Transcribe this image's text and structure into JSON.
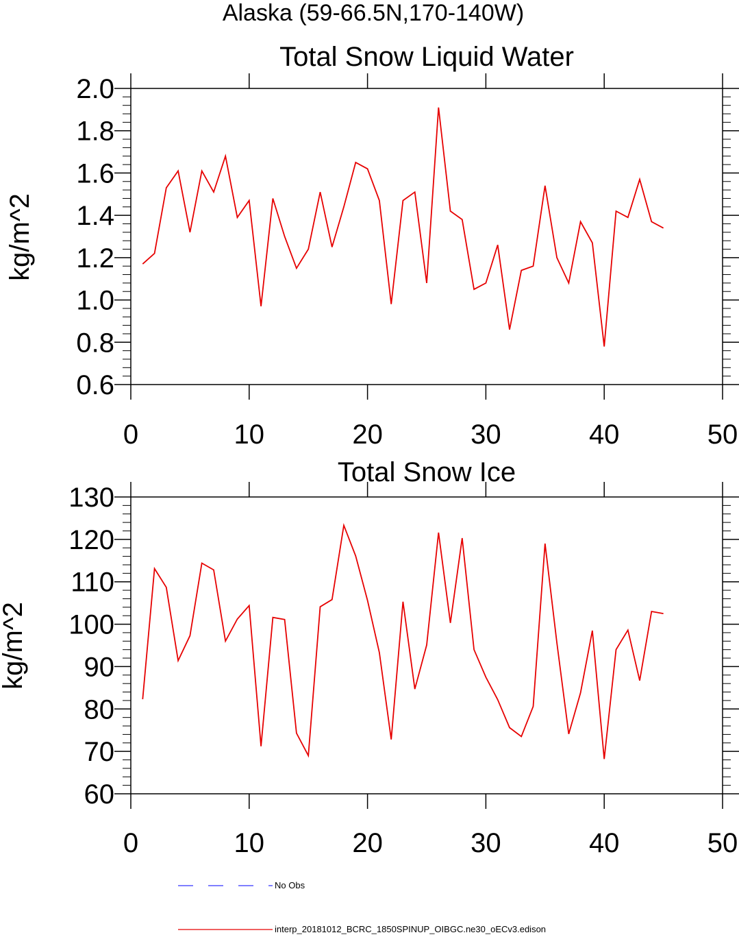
{
  "figure": {
    "main_title": "Alaska (59-66.5N,170-140W)"
  },
  "chart_data": [
    {
      "type": "line",
      "title": "Total Snow Liquid Water",
      "ylabel": "kg/m^2",
      "xlabel": "",
      "xlim": [
        0,
        50
      ],
      "ylim": [
        0.6,
        2.0
      ],
      "x_ticks": [
        "0",
        "10",
        "20",
        "30",
        "40",
        "50"
      ],
      "y_ticks": [
        "0.6",
        "0.8",
        "1.0",
        "1.2",
        "1.4",
        "1.6",
        "1.8",
        "2.0"
      ],
      "series": [
        {
          "color": "#e60000",
          "x": [
            1,
            2,
            3,
            4,
            5,
            6,
            7,
            8,
            9,
            10,
            11,
            12,
            13,
            14,
            15,
            16,
            17,
            18,
            19,
            20,
            21,
            22,
            23,
            24,
            25,
            26,
            27,
            28,
            29,
            30,
            31,
            32,
            33,
            34,
            35,
            36,
            37,
            38,
            39,
            40,
            41,
            42,
            43,
            44,
            45
          ],
          "values": [
            1.17,
            1.22,
            1.53,
            1.61,
            1.32,
            1.61,
            1.51,
            1.68,
            1.39,
            1.47,
            0.97,
            1.48,
            1.3,
            1.15,
            1.24,
            1.51,
            1.25,
            1.44,
            1.65,
            1.62,
            1.47,
            0.98,
            1.47,
            1.51,
            1.08,
            1.91,
            1.42,
            1.38,
            1.05,
            1.08,
            1.26,
            0.86,
            1.14,
            1.16,
            1.54,
            1.2,
            1.08,
            1.37,
            1.27,
            0.78,
            1.42,
            1.39,
            1.57,
            1.37,
            1.34
          ]
        }
      ]
    },
    {
      "type": "line",
      "title": "Total Snow Ice",
      "ylabel": "kg/m^2",
      "xlabel": "",
      "xlim": [
        0,
        50
      ],
      "ylim": [
        60,
        130
      ],
      "x_ticks": [
        "0",
        "10",
        "20",
        "30",
        "40",
        "50"
      ],
      "y_ticks": [
        "60",
        "70",
        "80",
        "90",
        "100",
        "110",
        "120",
        "130"
      ],
      "series": [
        {
          "color": "#e60000",
          "x": [
            1,
            2,
            3,
            4,
            5,
            6,
            7,
            8,
            9,
            10,
            11,
            12,
            13,
            14,
            15,
            16,
            17,
            18,
            19,
            20,
            21,
            22,
            23,
            24,
            25,
            26,
            27,
            28,
            29,
            30,
            31,
            32,
            33,
            34,
            35,
            36,
            37,
            38,
            39,
            40,
            41,
            42,
            43,
            44,
            45
          ],
          "values": [
            82.3,
            113.1,
            108.7,
            91.4,
            97.3,
            114.4,
            112.8,
            96.0,
            101.2,
            104.4,
            71.2,
            101.6,
            101.1,
            74.3,
            69.0,
            104.1,
            105.8,
            123.3,
            116.1,
            105.6,
            93.3,
            72.8,
            105.3,
            84.7,
            95.1,
            121.6,
            100.3,
            120.3,
            94.0,
            87.5,
            82.2,
            75.6,
            73.5,
            80.6,
            119.0,
            95.6,
            74.1,
            83.8,
            98.5,
            68.2,
            94.0,
            98.6,
            86.7,
            103.0,
            102.5
          ]
        }
      ]
    }
  ],
  "legend": {
    "items": [
      {
        "label": "No Obs",
        "color": "#3333ff",
        "style": "dashed"
      },
      {
        "label": "interp_20181012_BCRC_1850SPINUP_OIBGC.ne30_oECv3.edison",
        "color": "#e60000",
        "style": "solid"
      }
    ]
  }
}
